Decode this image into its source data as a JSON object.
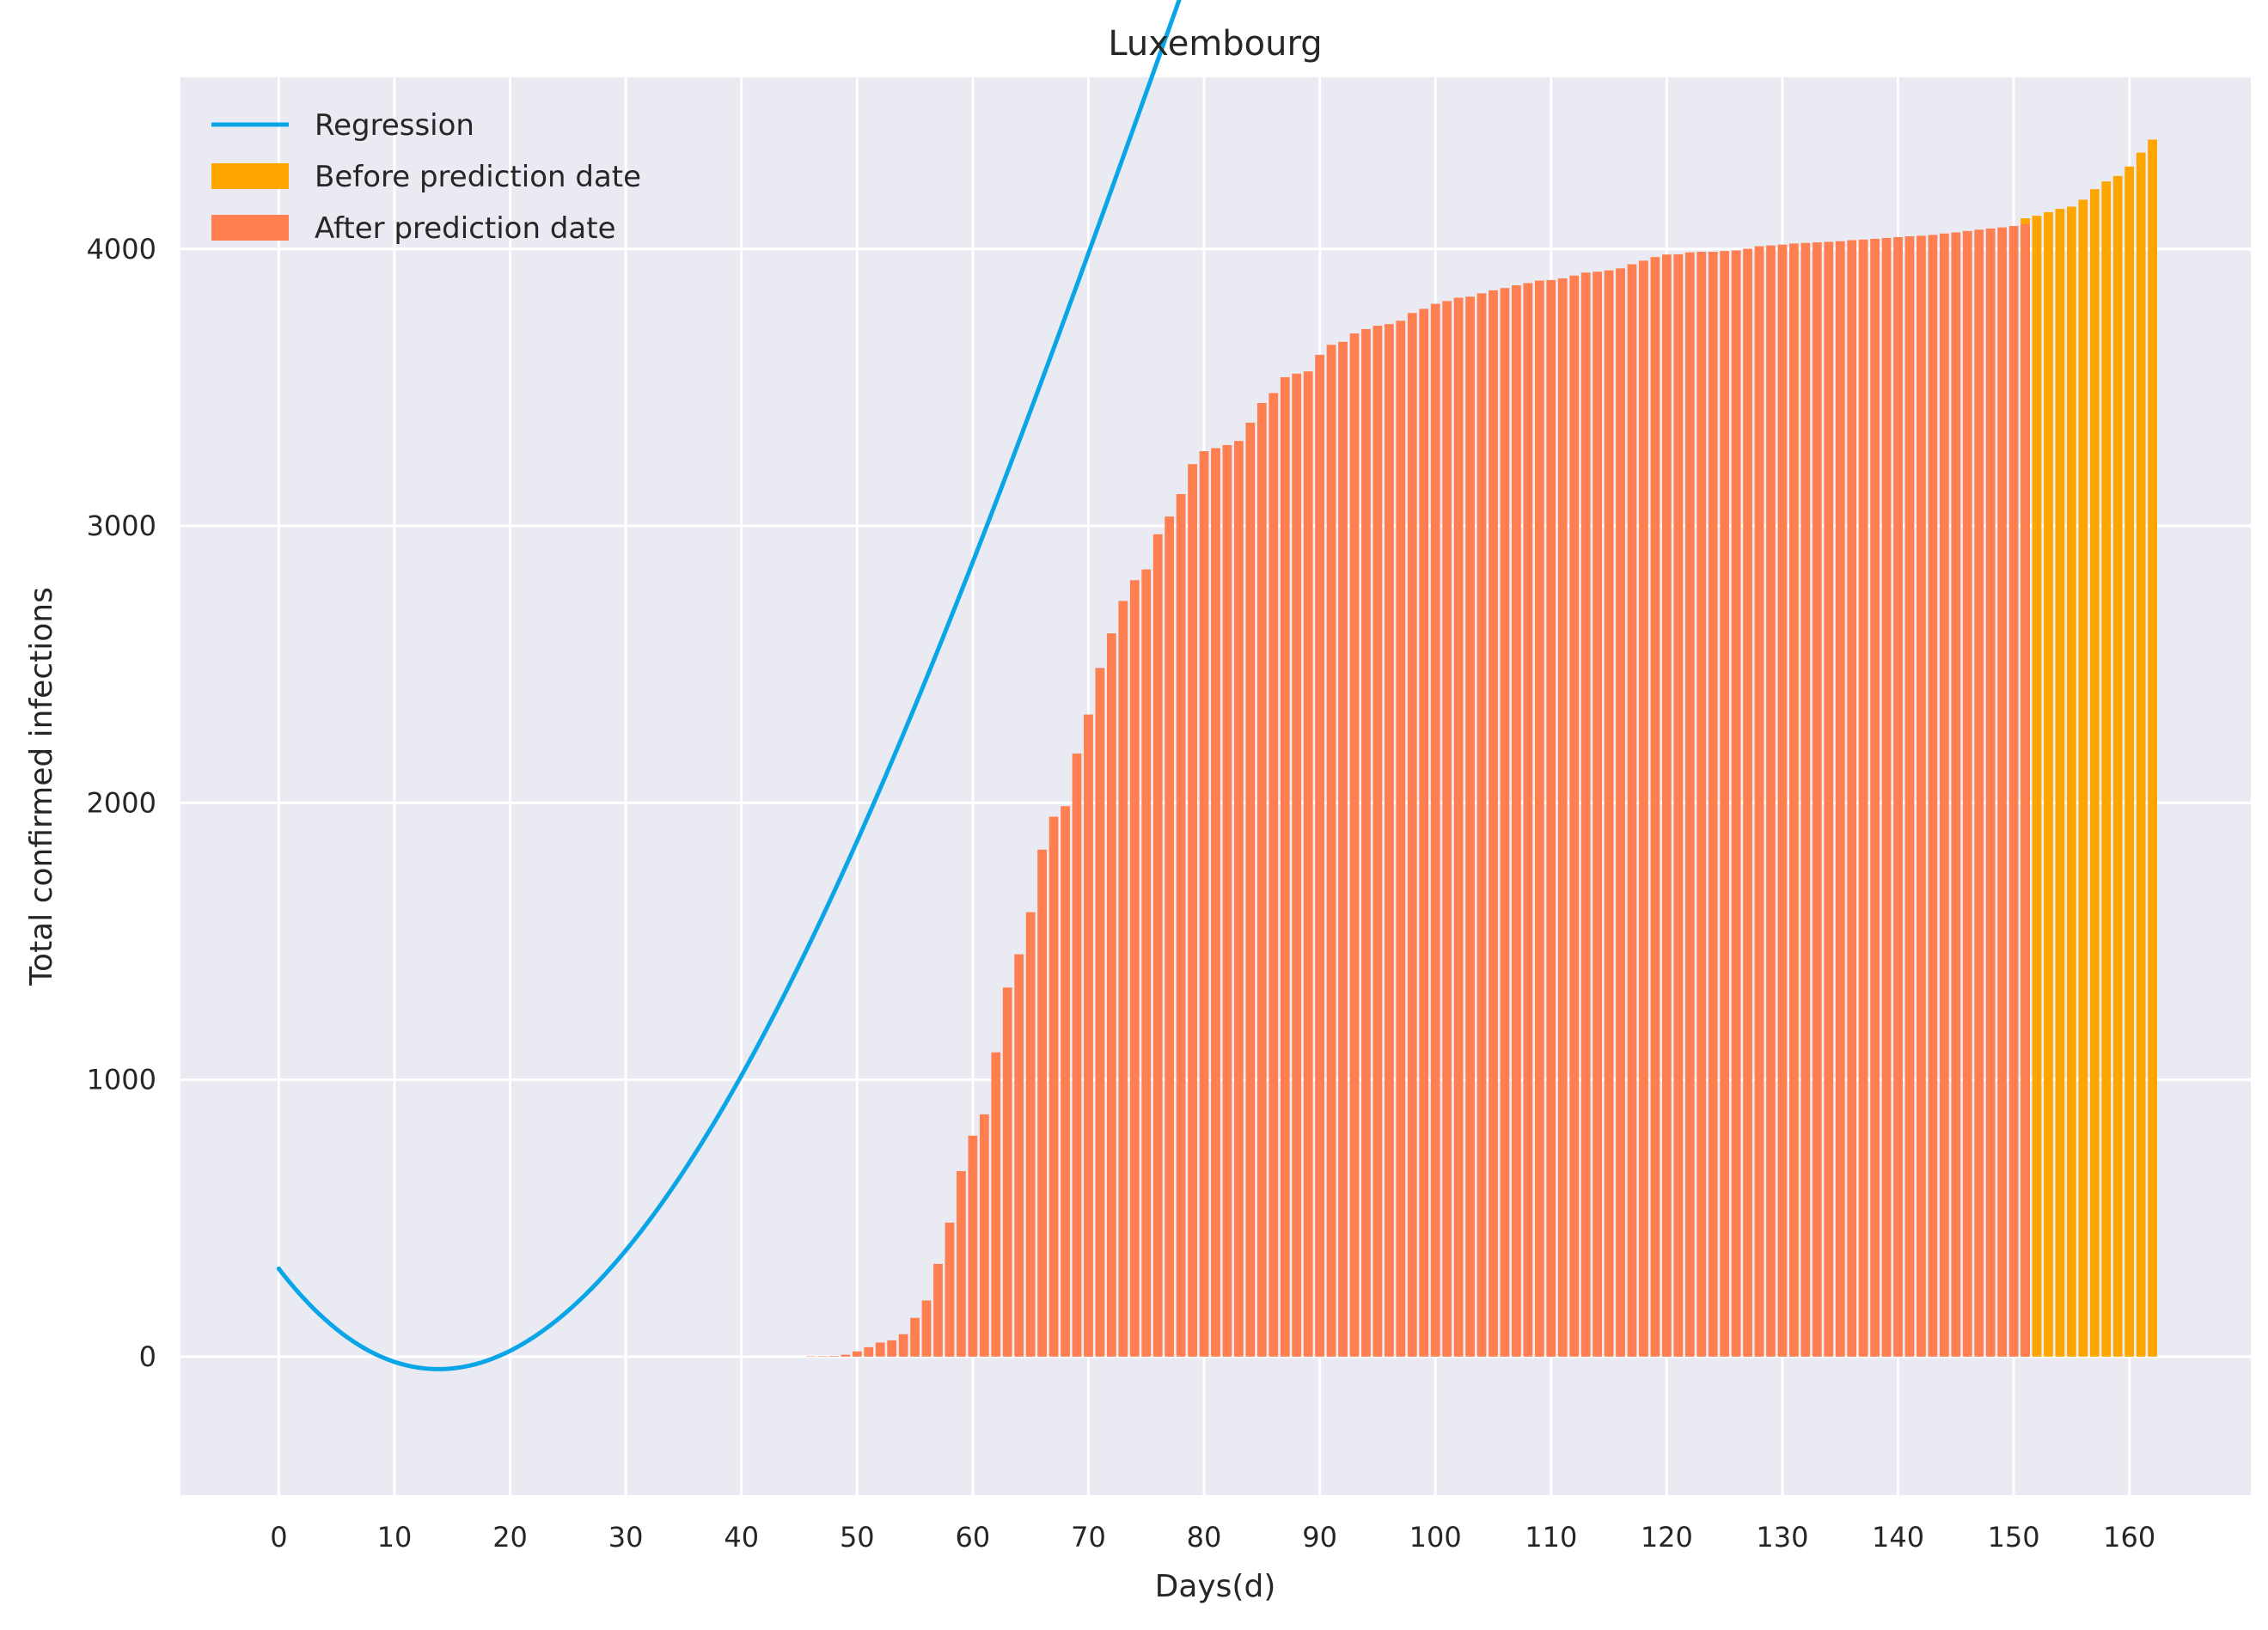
{
  "chart_data": {
    "type": "bar",
    "title": "Luxembourg",
    "xlabel": "Days(d)",
    "ylabel": "Total confirmed infections",
    "xlim": [
      -8.5,
      170.5
    ],
    "ylim": [
      -500,
      4620
    ],
    "xticks": [
      0,
      10,
      20,
      30,
      40,
      50,
      60,
      70,
      80,
      90,
      100,
      110,
      120,
      130,
      140,
      150,
      160
    ],
    "yticks": [
      0,
      1000,
      2000,
      3000,
      4000
    ],
    "grid": true,
    "legend_position": "top-left",
    "colors": {
      "background": "#eaeaf2",
      "grid": "#ffffff",
      "regression": "#0aa5e6",
      "before": "#ffa500",
      "after": "#ff7f50"
    },
    "series": [
      {
        "name": "Regression",
        "kind": "line",
        "color": "#0aa5e6",
        "x_range": [
          0,
          162
        ],
        "cubic_coefficients": [
          317.6,
          -54.27,
          2.1515,
          -0.00897
        ]
      },
      {
        "name": "Before prediction date",
        "kind": "bar",
        "color": "#ffa500",
        "x_start": 151,
        "values": [
          4111,
          4120,
          4133,
          4145,
          4153,
          4178,
          4216,
          4244,
          4264,
          4298,
          4348,
          4395
        ]
      },
      {
        "name": "After prediction date",
        "kind": "bar",
        "color": "#ff7f50",
        "x_start": 46,
        "values": [
          1,
          1,
          2,
          7,
          19,
          34,
          51,
          59,
          81,
          140,
          203,
          335,
          484,
          670,
          798,
          875,
          1099,
          1333,
          1453,
          1605,
          1831,
          1950,
          1988,
          2178,
          2319,
          2487,
          2612,
          2729,
          2804,
          2843,
          2970,
          3034,
          3115,
          3223,
          3270,
          3281,
          3292,
          3307,
          3373,
          3444,
          3480,
          3537,
          3550,
          3558,
          3618,
          3654,
          3665,
          3695,
          3711,
          3723,
          3729,
          3741,
          3769,
          3784,
          3802,
          3812,
          3824,
          3828,
          3840,
          3851,
          3859,
          3869,
          3877,
          3886,
          3888,
          3894,
          3904,
          3915,
          3918,
          3923,
          3930,
          3945,
          3958,
          3971,
          3980,
          3981,
          3988,
          3990,
          3990,
          3993,
          3995,
          4001,
          4010,
          4013,
          4016,
          4020,
          4022,
          4024,
          4026,
          4028,
          4032,
          4034,
          4037,
          4040,
          4043,
          4046,
          4048,
          4051,
          4056,
          4060,
          4065,
          4070,
          4074,
          4078,
          4083,
          4090
        ]
      }
    ]
  }
}
